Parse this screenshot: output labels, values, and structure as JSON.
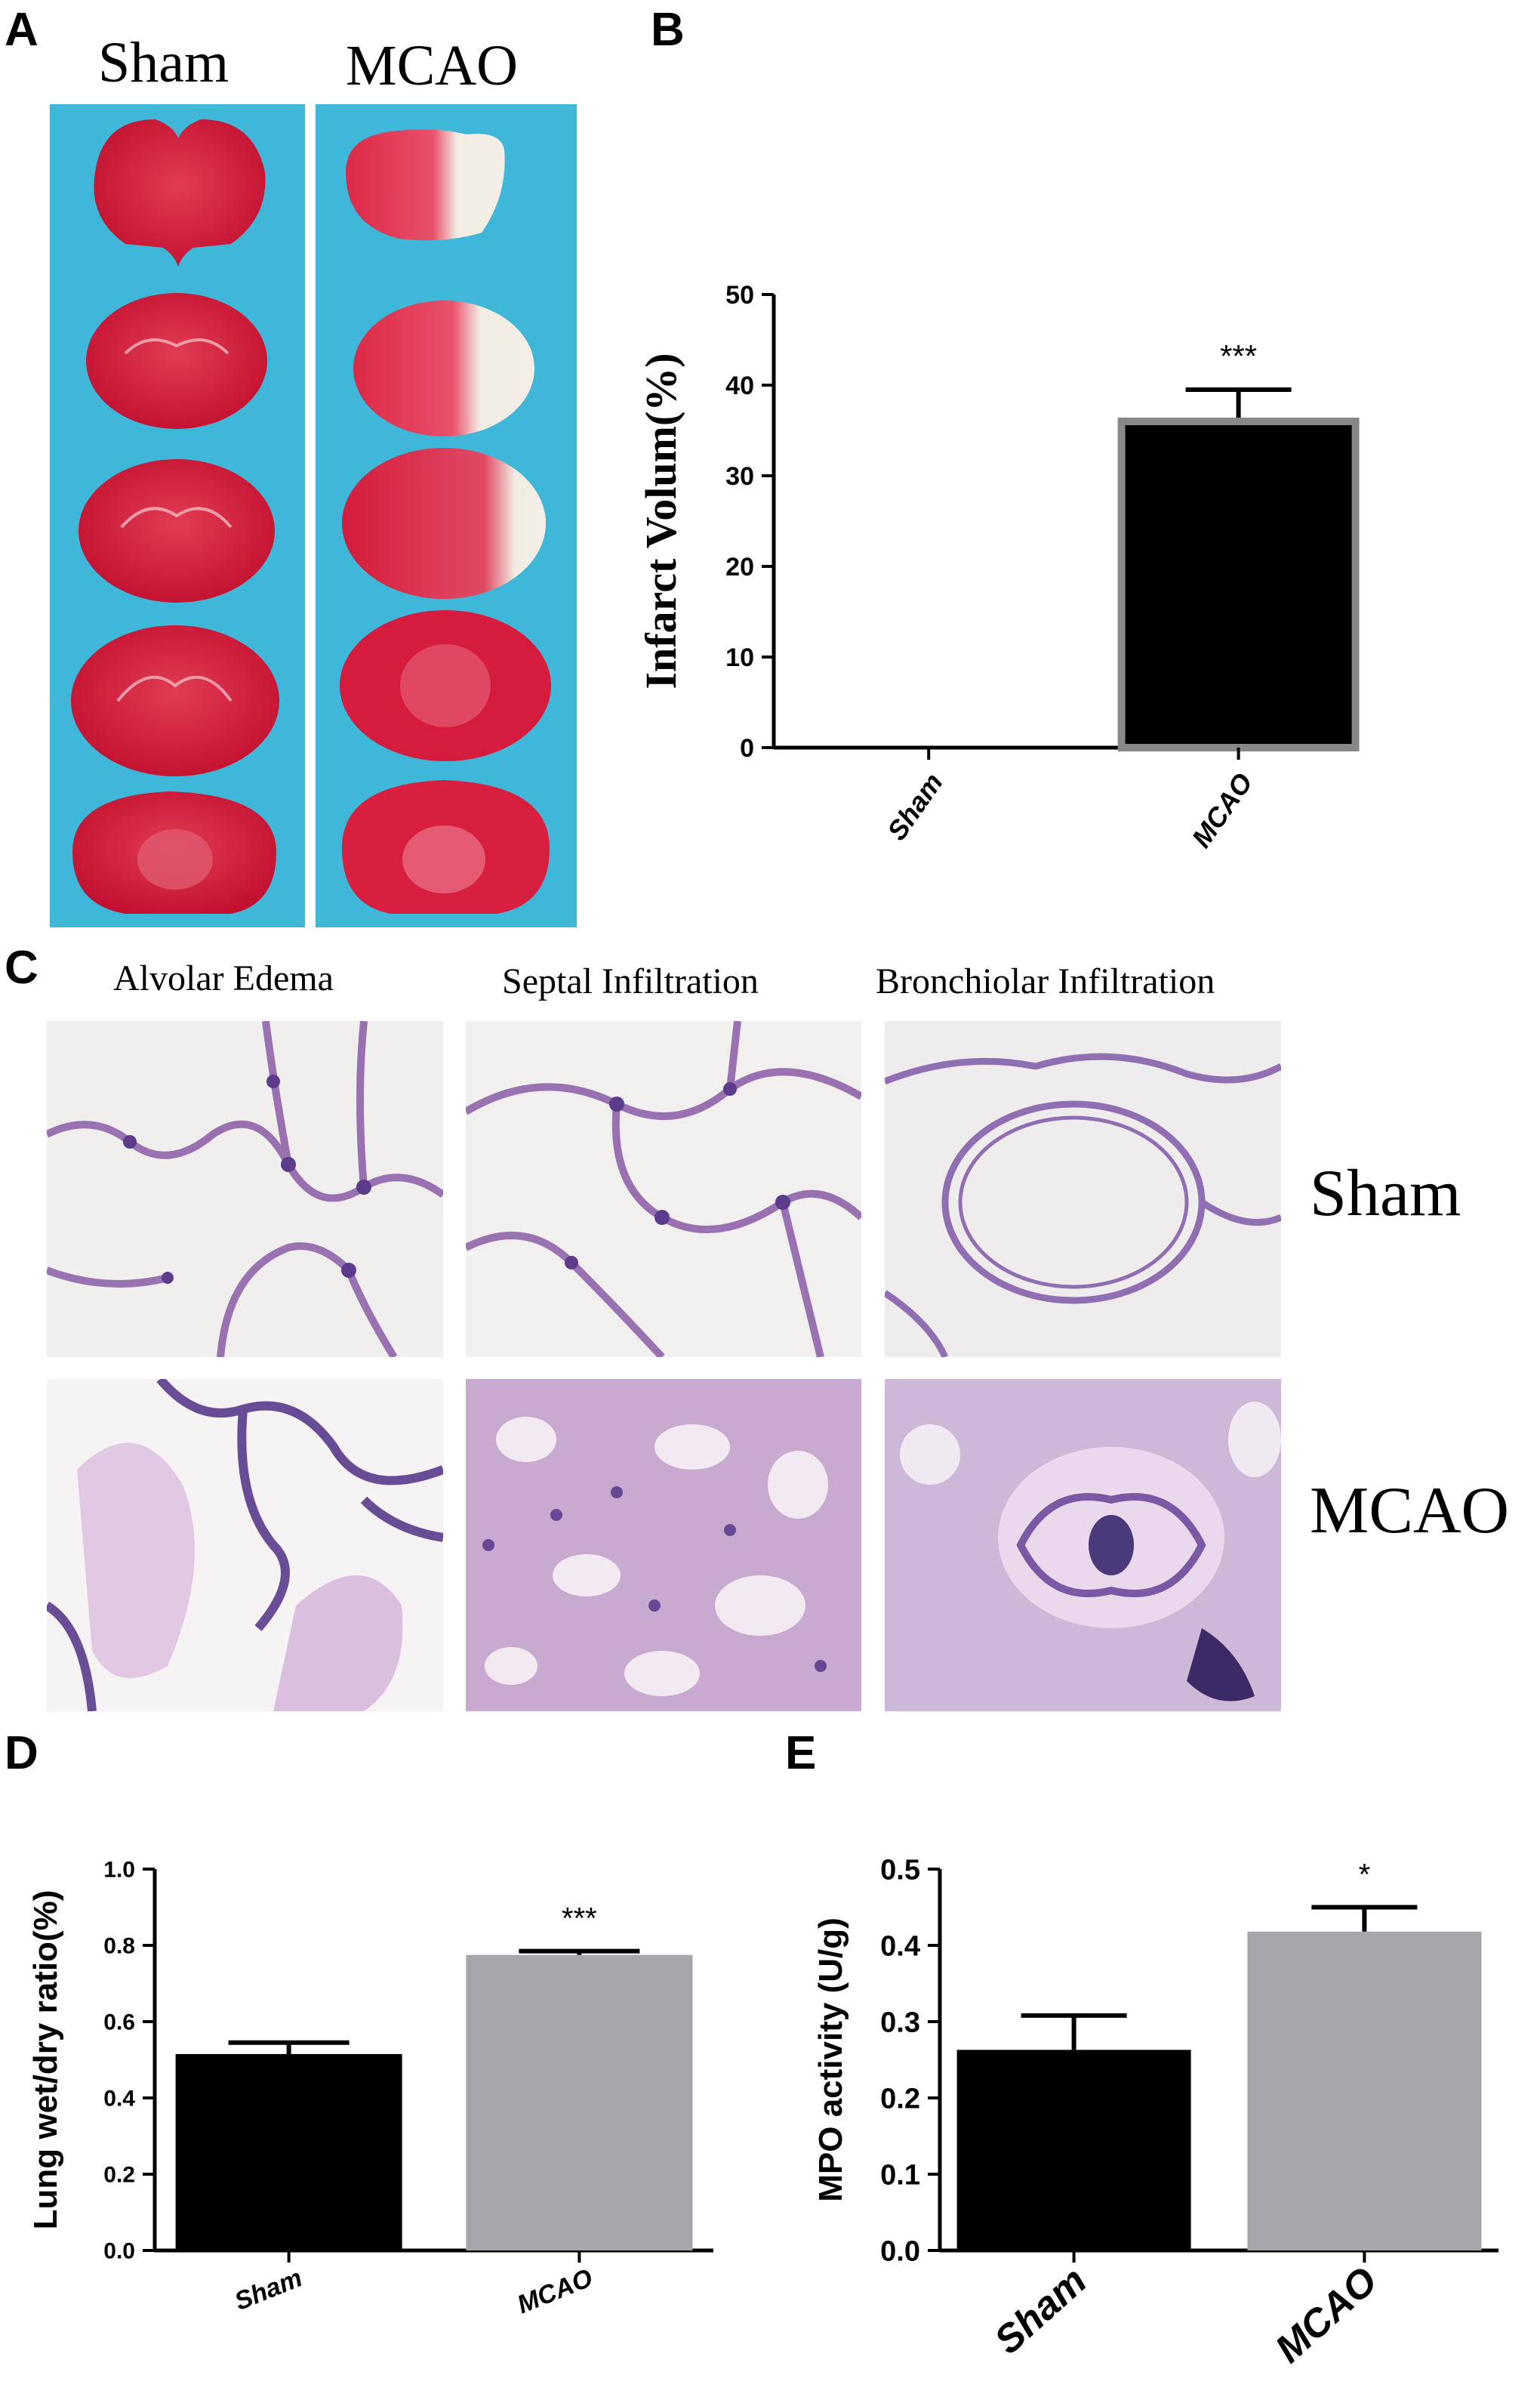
{
  "panels": {
    "A": {
      "letter": "A",
      "labels": [
        "Sham",
        "MCAO"
      ],
      "background_color": "#3fb7d8",
      "tissue_color": "#d41c3c",
      "infarct_color": "#f2ede4"
    },
    "B": {
      "letter": "B"
    },
    "C": {
      "letter": "C",
      "columns": [
        "Alvolar Edema",
        "Septal Infiltration",
        "Bronchiolar Infiltration"
      ],
      "rows": [
        "Sham",
        "MCAO"
      ]
    },
    "D": {
      "letter": "D"
    },
    "E": {
      "letter": "E"
    }
  },
  "chart_data": [
    {
      "panel": "B",
      "type": "bar",
      "title": "",
      "xlabel": "",
      "ylabel": "Infarct Volum(%)",
      "categories": [
        "Sham",
        "MCAO"
      ],
      "values": [
        0,
        36
      ],
      "errors": [
        0,
        3.5
      ],
      "significance": [
        "",
        "***"
      ],
      "ylim": [
        0,
        50
      ],
      "yticks": [
        "0",
        "10",
        "20",
        "30",
        "40",
        "50"
      ],
      "bar_colors": [
        "#000000",
        "#000000"
      ],
      "grid": false
    },
    {
      "panel": "D",
      "type": "bar",
      "title": "",
      "xlabel": "",
      "ylabel": "Lung wet/dry ratio(%)",
      "categories": [
        "Sham",
        "MCAO"
      ],
      "values": [
        0.515,
        0.775
      ],
      "errors": [
        0.03,
        0.01
      ],
      "significance": [
        "",
        "***"
      ],
      "ylim": [
        0,
        1.0
      ],
      "yticks": [
        "0.0",
        "0.2",
        "0.4",
        "0.6",
        "0.8",
        "1.0"
      ],
      "bar_colors": [
        "#000000",
        "#a6a6ab"
      ],
      "grid": false
    },
    {
      "panel": "E",
      "type": "bar",
      "title": "",
      "xlabel": "",
      "ylabel": "MPO activity (U/g)",
      "categories": [
        "Sham",
        "MCAO"
      ],
      "values": [
        0.263,
        0.418
      ],
      "errors": [
        0.045,
        0.032
      ],
      "significance": [
        "",
        "*"
      ],
      "ylim": [
        0,
        0.5
      ],
      "yticks": [
        "0.0",
        "0.1",
        "0.2",
        "0.3",
        "0.4",
        "0.5"
      ],
      "bar_colors": [
        "#000000",
        "#a6a6ab"
      ],
      "grid": false
    }
  ]
}
